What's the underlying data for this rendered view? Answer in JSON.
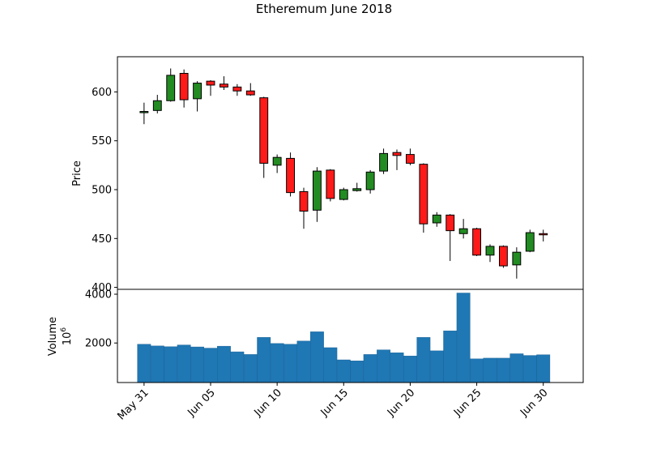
{
  "chart_data": {
    "type": "candlestick",
    "title": "Etheremum June 2018",
    "price_panel": {
      "ylabel": "Price",
      "ylim": [
        398,
        636
      ],
      "yticks": [
        400,
        450,
        500,
        550,
        600
      ]
    },
    "volume_panel": {
      "ylabel": "Volume",
      "ylabel_multiplier": "10",
      "ylabel_exponent": "6",
      "ylim": [
        380,
        4200
      ],
      "yticks": [
        2000,
        4000
      ]
    },
    "x_range": [
      -2,
      33
    ],
    "xticks": [
      {
        "label": "May 31",
        "index": 0
      },
      {
        "label": "Jun 05",
        "index": 5
      },
      {
        "label": "Jun 10",
        "index": 10
      },
      {
        "label": "Jun 15",
        "index": 15
      },
      {
        "label": "Jun 20",
        "index": 20
      },
      {
        "label": "Jun 25",
        "index": 25
      },
      {
        "label": "Jun 30",
        "index": 30
      }
    ],
    "colors": {
      "up": "#228b22",
      "down": "#ff1a1a",
      "volume": "#1f77b4"
    },
    "candles": [
      {
        "date": "May 31",
        "open": 579,
        "high": 589,
        "low": 567,
        "close": 580,
        "volume": 1950
      },
      {
        "date": "Jun 01",
        "open": 581,
        "high": 597,
        "low": 578,
        "close": 591,
        "volume": 1880
      },
      {
        "date": "Jun 02",
        "open": 591,
        "high": 624,
        "low": 590,
        "close": 617,
        "volume": 1850
      },
      {
        "date": "Jun 03",
        "open": 619,
        "high": 623,
        "low": 584,
        "close": 592,
        "volume": 1920
      },
      {
        "date": "Jun 04",
        "open": 593,
        "high": 611,
        "low": 580,
        "close": 609,
        "volume": 1840
      },
      {
        "date": "Jun 05",
        "open": 611,
        "high": 612,
        "low": 596,
        "close": 607,
        "volume": 1790
      },
      {
        "date": "Jun 06",
        "open": 608,
        "high": 616,
        "low": 602,
        "close": 605,
        "volume": 1870
      },
      {
        "date": "Jun 07",
        "open": 605,
        "high": 608,
        "low": 596,
        "close": 601,
        "volume": 1640
      },
      {
        "date": "Jun 08",
        "open": 601,
        "high": 609,
        "low": 596,
        "close": 597,
        "volume": 1530
      },
      {
        "date": "Jun 09",
        "open": 594,
        "high": 595,
        "low": 512,
        "close": 527,
        "volume": 2230
      },
      {
        "date": "Jun 10",
        "open": 525,
        "high": 536,
        "low": 517,
        "close": 533,
        "volume": 1980
      },
      {
        "date": "Jun 11",
        "open": 532,
        "high": 538,
        "low": 493,
        "close": 497,
        "volume": 1950
      },
      {
        "date": "Jun 12",
        "open": 498,
        "high": 502,
        "low": 460,
        "close": 478,
        "volume": 2080
      },
      {
        "date": "Jun 13",
        "open": 479,
        "high": 523,
        "low": 467,
        "close": 519,
        "volume": 2460
      },
      {
        "date": "Jun 14",
        "open": 520,
        "high": 521,
        "low": 488,
        "close": 491,
        "volume": 1810
      },
      {
        "date": "Jun 15",
        "open": 490,
        "high": 502,
        "low": 489,
        "close": 500,
        "volume": 1310
      },
      {
        "date": "Jun 16",
        "open": 499,
        "high": 507,
        "low": 498,
        "close": 501,
        "volume": 1270
      },
      {
        "date": "Jun 17",
        "open": 500,
        "high": 520,
        "low": 496,
        "close": 518,
        "volume": 1530
      },
      {
        "date": "Jun 18",
        "open": 519,
        "high": 542,
        "low": 516,
        "close": 537,
        "volume": 1720
      },
      {
        "date": "Jun 19",
        "open": 538,
        "high": 541,
        "low": 520,
        "close": 535,
        "volume": 1600
      },
      {
        "date": "Jun 20",
        "open": 536,
        "high": 542,
        "low": 525,
        "close": 527,
        "volume": 1470
      },
      {
        "date": "Jun 21",
        "open": 526,
        "high": 527,
        "low": 456,
        "close": 465,
        "volume": 2230
      },
      {
        "date": "Jun 22",
        "open": 466,
        "high": 477,
        "low": 462,
        "close": 474,
        "volume": 1680
      },
      {
        "date": "Jun 23",
        "open": 474,
        "high": 475,
        "low": 427,
        "close": 458,
        "volume": 2500
      },
      {
        "date": "Jun 24",
        "open": 455,
        "high": 470,
        "low": 450,
        "close": 460,
        "volume": 4050
      },
      {
        "date": "Jun 25",
        "open": 460,
        "high": 461,
        "low": 432,
        "close": 433,
        "volume": 1350
      },
      {
        "date": "Jun 26",
        "open": 433,
        "high": 444,
        "low": 426,
        "close": 442,
        "volume": 1380
      },
      {
        "date": "Jun 27",
        "open": 442,
        "high": 443,
        "low": 420,
        "close": 422,
        "volume": 1380
      },
      {
        "date": "Jun 28",
        "open": 423,
        "high": 441,
        "low": 409,
        "close": 436,
        "volume": 1560
      },
      {
        "date": "Jun 29",
        "open": 437,
        "high": 459,
        "low": 436,
        "close": 456,
        "volume": 1490
      },
      {
        "date": "Jun 30",
        "open": 455,
        "high": 459,
        "low": 447,
        "close": 454,
        "volume": 1520
      }
    ]
  }
}
